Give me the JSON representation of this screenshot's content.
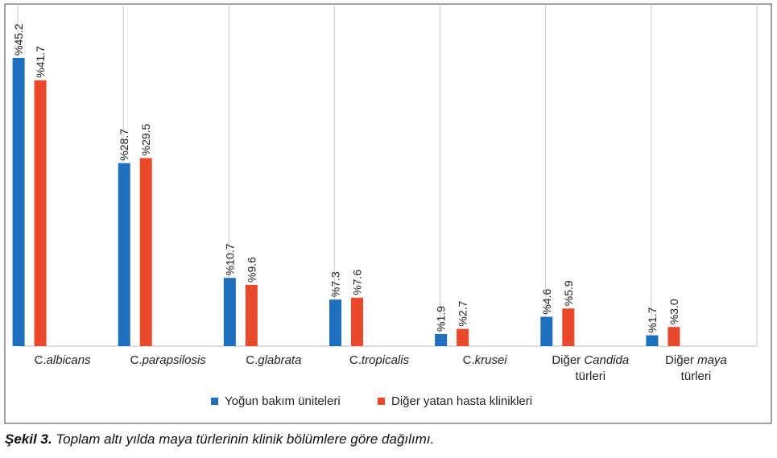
{
  "caption": {
    "label": "Şekil 3.",
    "text": " Toplam altı yılda maya türlerinin klinik bölümlere göre dağılımı."
  },
  "chart_data": {
    "type": "bar",
    "categories": [
      [
        {
          "t": "C.",
          "i": false
        },
        {
          "t": "albicans",
          "i": true
        }
      ],
      [
        {
          "t": "C.",
          "i": false
        },
        {
          "t": "parapsilosis",
          "i": true
        }
      ],
      [
        {
          "t": "C.",
          "i": false
        },
        {
          "t": "glabrata",
          "i": true
        }
      ],
      [
        {
          "t": "C.",
          "i": false
        },
        {
          "t": "tropicalis",
          "i": true
        }
      ],
      [
        {
          "t": "C.",
          "i": false
        },
        {
          "t": "krusei",
          "i": true
        }
      ],
      [
        {
          "t": "Diğer ",
          "i": false
        },
        {
          "t": "Candida",
          "i": true
        },
        {
          "t": "\ntürleri",
          "i": false
        }
      ],
      [
        {
          "t": "Diğer ",
          "i": false
        },
        {
          "t": "maya",
          "i": true
        },
        {
          "t": "\ntürleri",
          "i": false
        }
      ]
    ],
    "series": [
      {
        "name": "Yoğun bakım üniteleri",
        "color": "#1f6fbf",
        "values": [
          45.2,
          28.7,
          10.7,
          7.3,
          1.9,
          4.6,
          1.7
        ],
        "labels": [
          "%45.2",
          "%28.7",
          "%10.7",
          "%7.3",
          "%1.9",
          "%4.6",
          "%1.7"
        ]
      },
      {
        "name": "Diğer yatan hasta klinikleri",
        "color": "#e8492a",
        "values": [
          41.7,
          29.5,
          9.6,
          7.6,
          2.7,
          5.9,
          3.0
        ],
        "labels": [
          "%41.7",
          "%29.5",
          "%9.6",
          "%7.6",
          "%2.7",
          "%5.9",
          "%3.0"
        ]
      }
    ],
    "ylim": [
      0,
      50
    ],
    "grid": "vertical separators between categories",
    "legend_position": "bottom"
  }
}
